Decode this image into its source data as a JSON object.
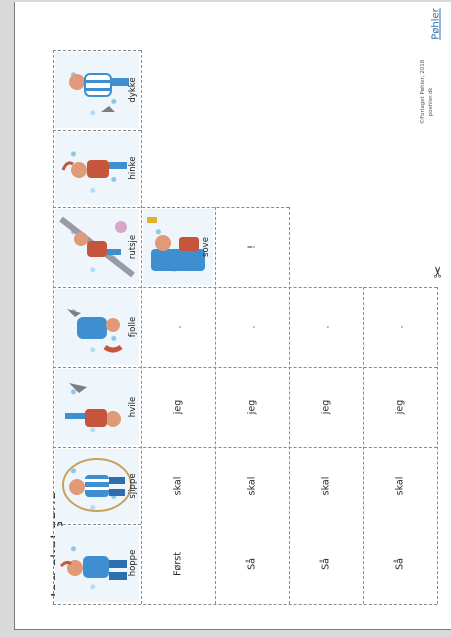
{
  "title": "Jeg skal sove",
  "pictures": [
    {
      "label": "hoppe",
      "icon": "child-jumping-illustration"
    },
    {
      "label": "sjippe",
      "icon": "child-skipping-rope-illustration"
    },
    {
      "label": "hvile",
      "icon": "child-resting-illustration"
    },
    {
      "label": "fjolle",
      "icon": "child-fooling-around-illustration"
    },
    {
      "label": "rutsje",
      "icon": "child-sliding-illustration"
    },
    {
      "label": "hinke",
      "icon": "child-hopscotch-illustration"
    },
    {
      "label": "dykke",
      "icon": "child-diving-illustration"
    },
    {
      "label": "sove",
      "icon": "child-sleeping-illustration"
    }
  ],
  "rows": [
    [
      "Først",
      "skal",
      "jeg",
      "."
    ],
    [
      "Så",
      "skal",
      "jeg",
      "."
    ],
    [
      "Så",
      "skal",
      "jeg",
      "."
    ],
    [
      "Så",
      "skal",
      "jeg",
      "."
    ]
  ],
  "sentence_end": "!",
  "scissors_icon": "✂",
  "copyright": "©Forlaget Pøhler, 2018",
  "website": "poehler.dk",
  "logo_text": "Pøhler",
  "colors": {
    "accent": "#2e6fb0",
    "picture_blue": "#8ec6e8"
  }
}
